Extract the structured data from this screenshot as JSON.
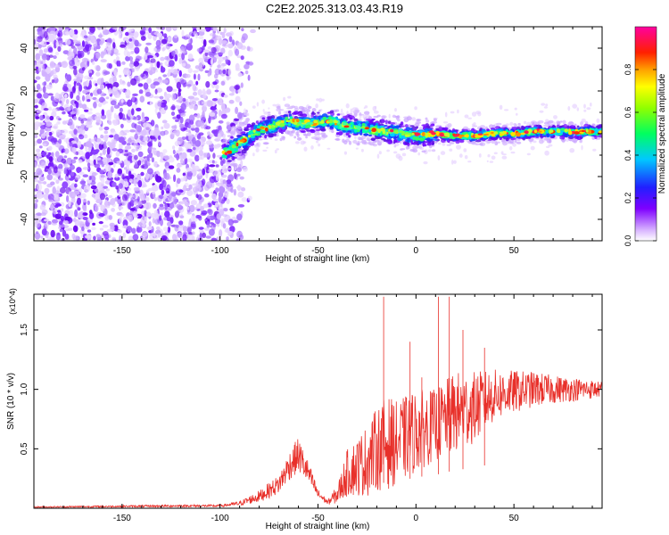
{
  "title": "C2E2.2025.313.03.43.R19",
  "chart_data": [
    {
      "type": "heatmap",
      "name": "spectrogram",
      "xlabel": "Height of straight line (km)",
      "ylabel": "Frequency (Hz)",
      "xlim": [
        -195,
        95
      ],
      "ylim": [
        -50,
        50
      ],
      "xticks": [
        -150,
        -100,
        -50,
        0,
        50
      ],
      "yticks": [
        -40,
        -20,
        0,
        20,
        40
      ],
      "noise_region_xmax": -88,
      "ridge": {
        "x": [
          -98,
          -92,
          -86,
          -80,
          -72,
          -65,
          -58,
          -50,
          -44,
          -38,
          -30,
          -22,
          -14,
          -6,
          2,
          10,
          20,
          30,
          40,
          50,
          60,
          70,
          80,
          95
        ],
        "freq": [
          -9,
          -6,
          -2,
          2,
          4,
          6,
          5,
          5,
          6,
          4,
          3,
          2,
          1,
          0,
          -1,
          0,
          -1,
          -1,
          0,
          0,
          1,
          1,
          1,
          1
        ]
      },
      "colorbar": {
        "label": "Normalized spectral amplitude",
        "range": [
          0.0,
          1.0
        ],
        "ticks": [
          0.0,
          0.2,
          0.4,
          0.6,
          0.8
        ]
      }
    },
    {
      "type": "line",
      "name": "snr",
      "xlabel": "Height of straight line (km)",
      "ylabel": "SNR (10 * v/v)",
      "yunit": "(x10^4)",
      "color": "#e8302a",
      "xlim": [
        -195,
        95
      ],
      "ylim": [
        0,
        1.8
      ],
      "xticks": [
        -150,
        -100,
        -50,
        0,
        50
      ],
      "yticks": [
        0.5,
        1.0,
        1.5
      ],
      "envelope": {
        "x": [
          -195,
          -120,
          -100,
          -90,
          -80,
          -70,
          -65,
          -60,
          -55,
          -50,
          -45,
          -40,
          -35,
          -30,
          -25,
          -20,
          -15,
          -10,
          -5,
          0,
          10,
          20,
          30,
          40,
          50,
          60,
          70,
          80,
          90,
          95
        ],
        "mean": [
          0.01,
          0.02,
          0.02,
          0.04,
          0.1,
          0.2,
          0.35,
          0.45,
          0.3,
          0.12,
          0.05,
          0.12,
          0.3,
          0.35,
          0.4,
          0.5,
          0.55,
          0.55,
          0.6,
          0.65,
          0.7,
          0.8,
          0.85,
          0.95,
          0.98,
          1.0,
          1.0,
          1.0,
          1.0,
          1.0
        ],
        "spread": [
          0.005,
          0.01,
          0.01,
          0.02,
          0.05,
          0.08,
          0.12,
          0.15,
          0.1,
          0.04,
          0.02,
          0.08,
          0.2,
          0.25,
          0.3,
          0.35,
          0.4,
          0.35,
          0.35,
          0.35,
          0.3,
          0.35,
          0.3,
          0.22,
          0.18,
          0.15,
          0.12,
          0.1,
          0.08,
          0.06
        ]
      },
      "spikes": [
        {
          "x": -16.5,
          "y": 1.78
        },
        {
          "x": 11.5,
          "y": 1.78
        },
        {
          "x": 17,
          "y": 1.78
        },
        {
          "x": 3,
          "y": 1.1
        },
        {
          "x": -3,
          "y": 1.4
        },
        {
          "x": 24,
          "y": 1.5
        },
        {
          "x": 35,
          "y": 1.35
        }
      ]
    }
  ]
}
